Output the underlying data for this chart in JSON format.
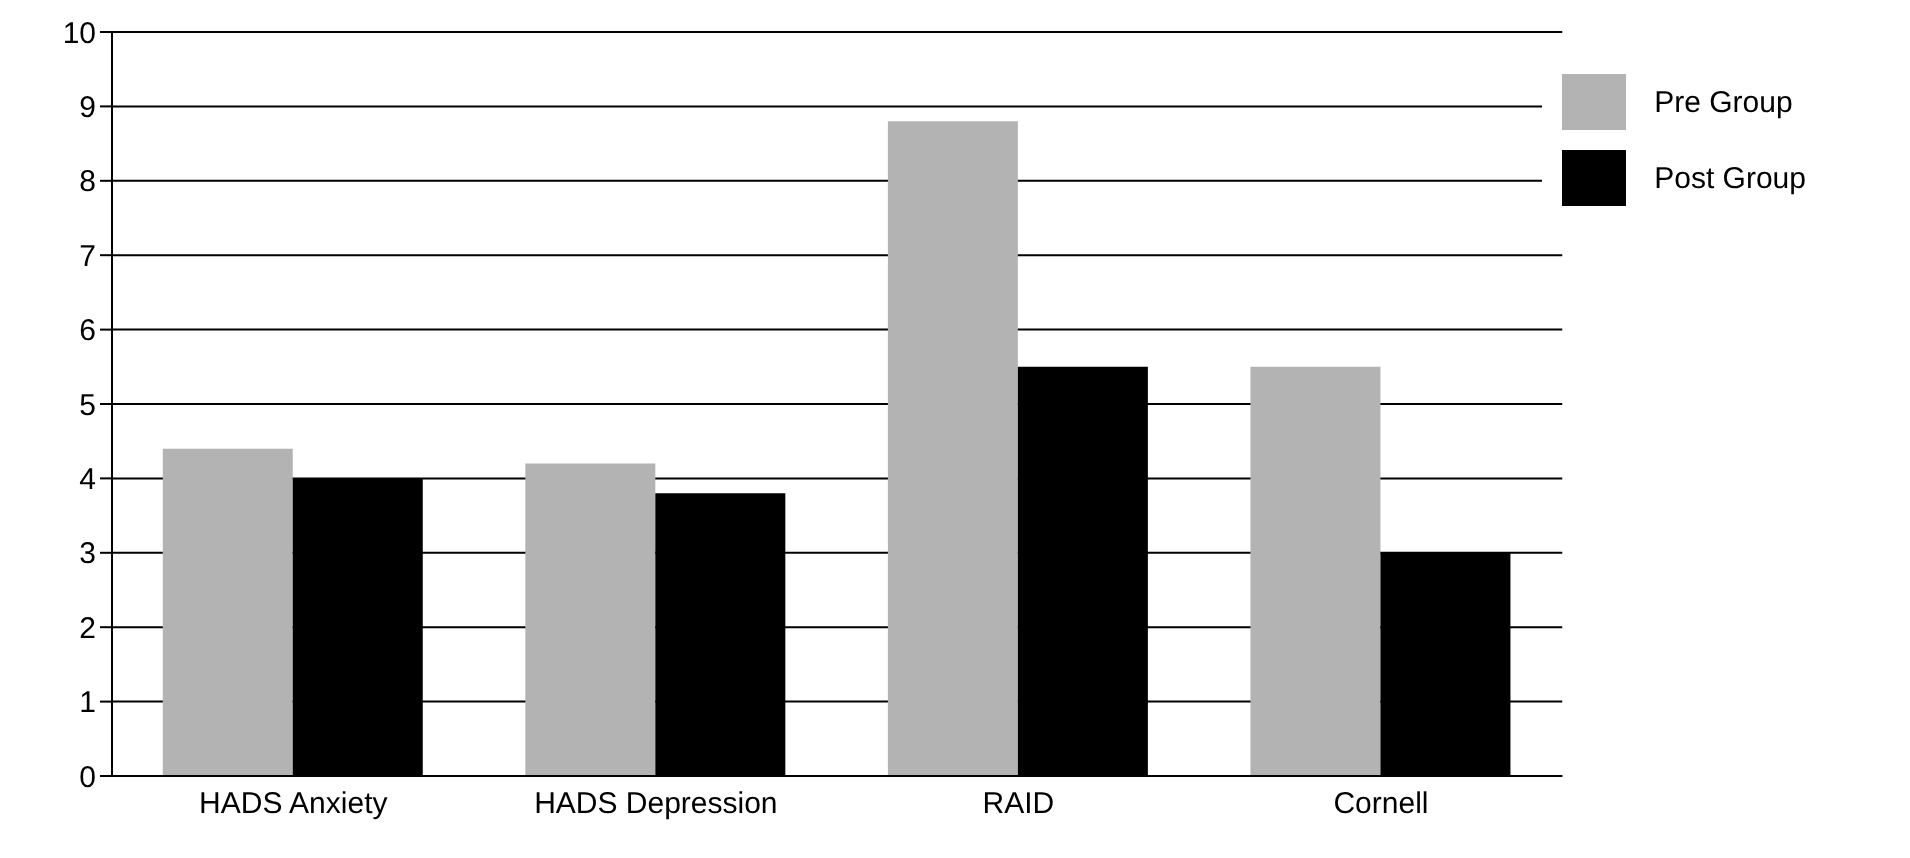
{
  "chart_data": {
    "type": "bar",
    "categories": [
      "HADS Anxiety",
      "HADS Depression",
      "RAID",
      "Cornell"
    ],
    "series": [
      {
        "name": "Pre Group",
        "color": "#b3b3b3",
        "values": [
          4.4,
          4.2,
          8.8,
          5.5
        ]
      },
      {
        "name": "Post Group",
        "color": "#000000",
        "values": [
          4.0,
          3.8,
          5.5,
          3.0
        ]
      }
    ],
    "ylim": [
      0,
      10
    ],
    "yticks": [
      0,
      1,
      2,
      3,
      4,
      5,
      6,
      7,
      8,
      9,
      10
    ],
    "grid": "y",
    "legend": "top right"
  }
}
